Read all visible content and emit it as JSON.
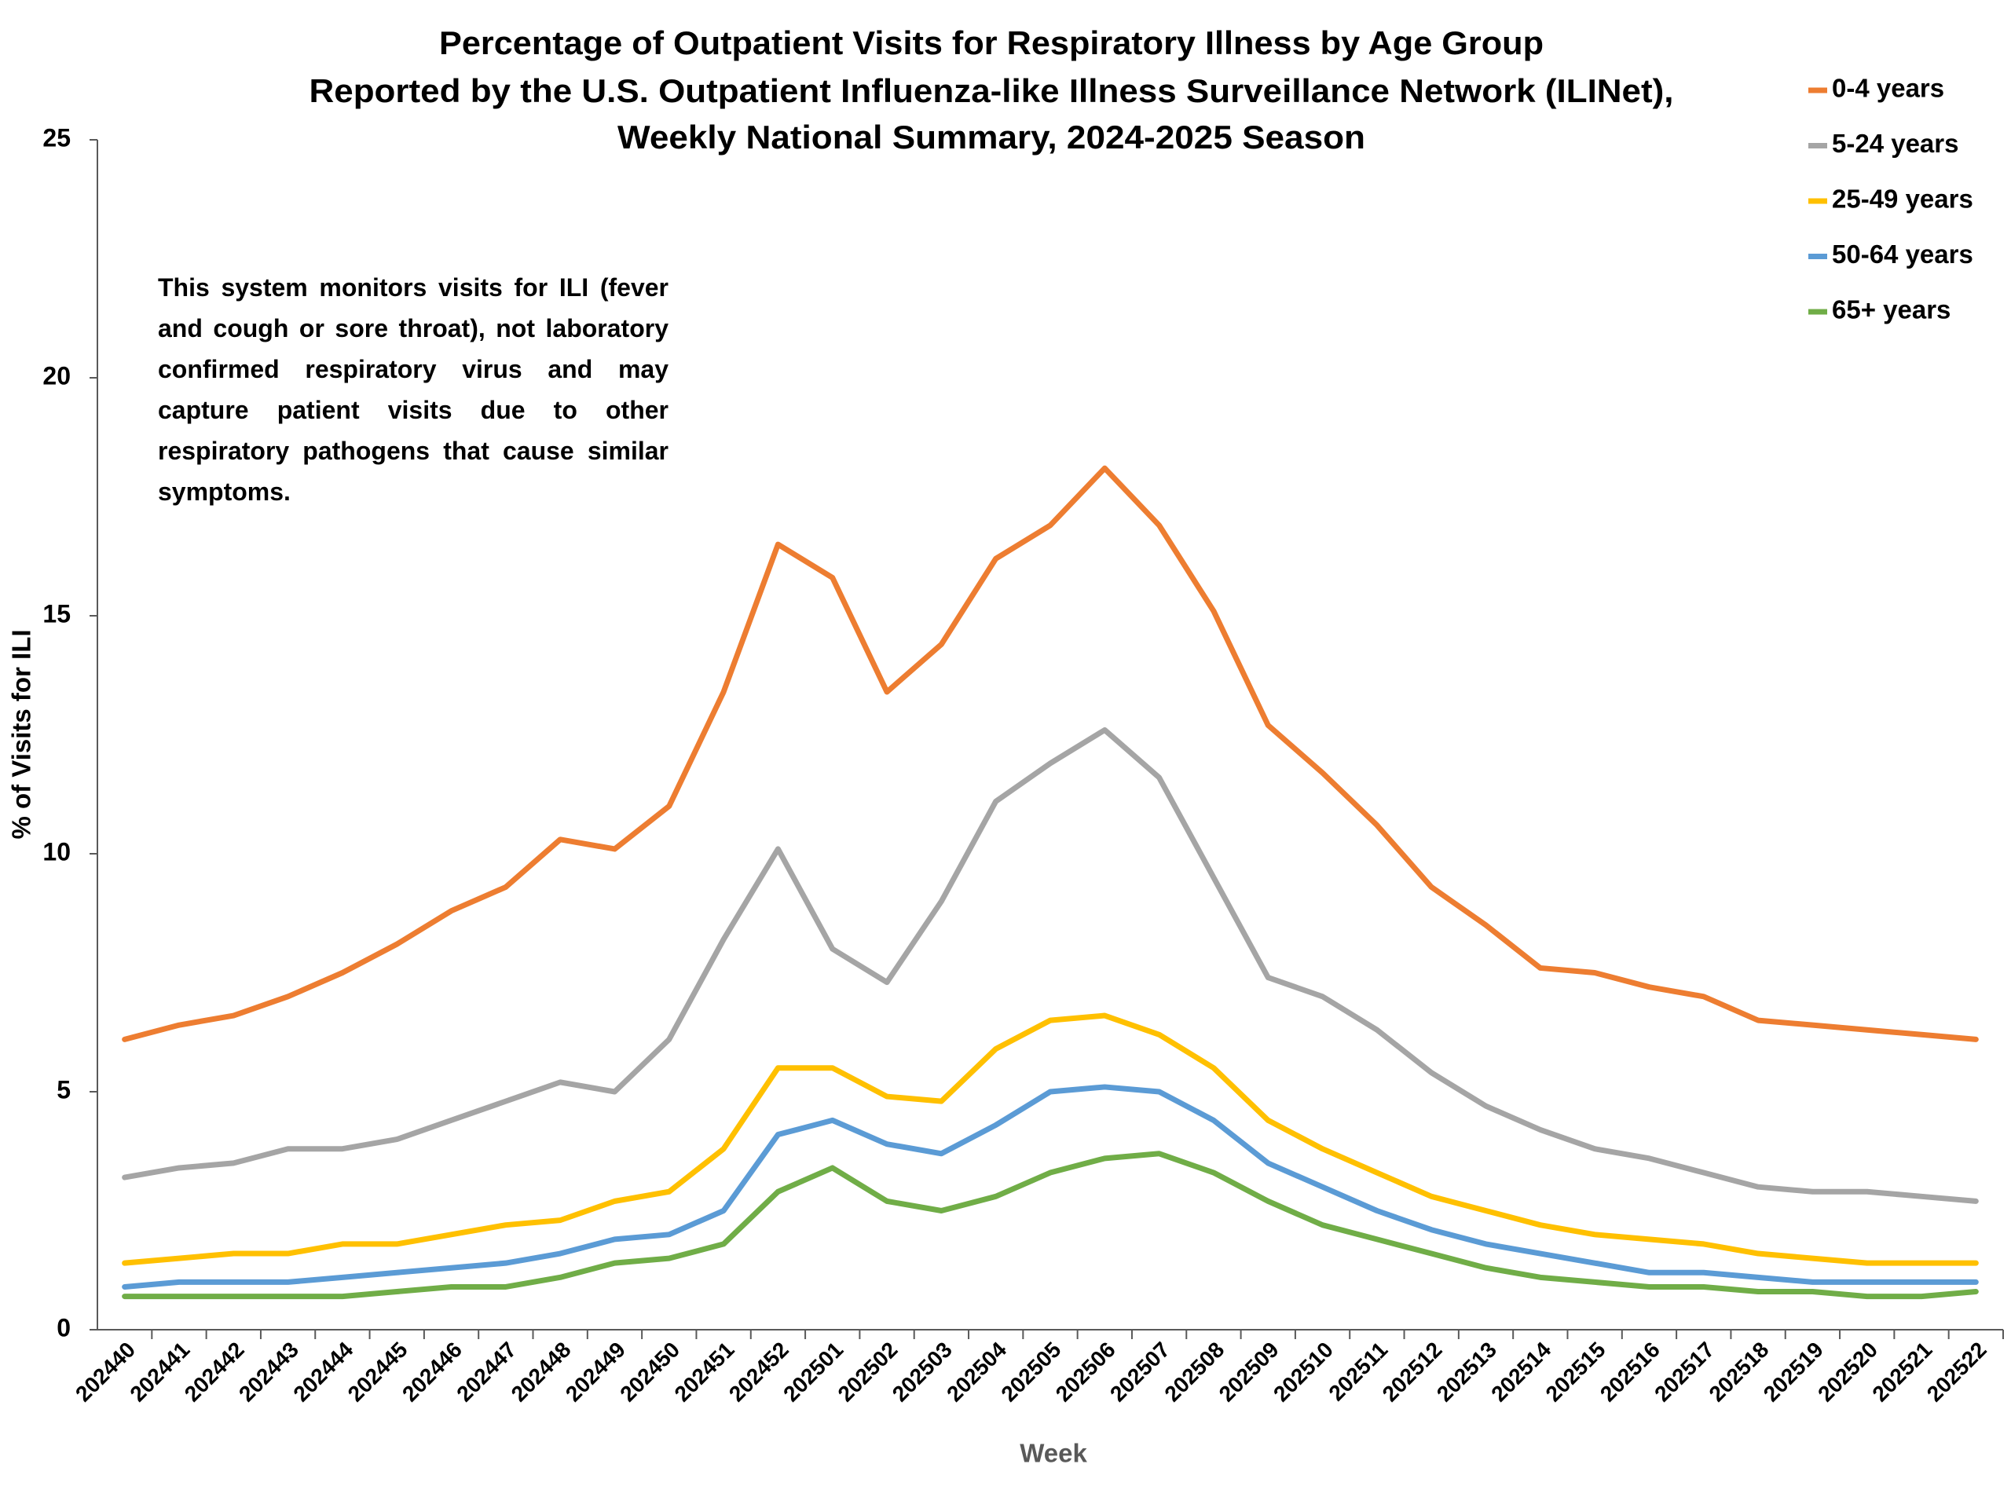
{
  "chart_data": {
    "type": "line",
    "title": [
      "Percentage of Outpatient Visits for Respiratory Illness by Age Group",
      "Reported by the U.S. Outpatient Influenza-like Illness Surveillance Network (ILINet),",
      "Weekly National Summary, 2024-2025 Season"
    ],
    "annotation": "This system monitors visits for ILI (fever and cough or sore throat), not laboratory confirmed respiratory virus and may capture patient visits due to other respiratory pathogens that cause similar symptoms.",
    "xlabel": "Week",
    "ylabel": "% of Visits for ILI",
    "categories": [
      "202440",
      "202441",
      "202442",
      "202443",
      "202444",
      "202445",
      "202446",
      "202447",
      "202448",
      "202449",
      "202450",
      "202451",
      "202452",
      "202501",
      "202502",
      "202503",
      "202504",
      "202505",
      "202506",
      "202507",
      "202508",
      "202509",
      "202510",
      "202511",
      "202512",
      "202513",
      "202514",
      "202515",
      "202516",
      "202517",
      "202518",
      "202519",
      "202520",
      "202521",
      "202522"
    ],
    "ylim": [
      0,
      25
    ],
    "yticks": [
      0,
      5,
      10,
      15,
      20,
      25
    ],
    "grid": false,
    "legend": "top-right",
    "series": [
      {
        "name": "0-4 years",
        "color": "#ED7D31",
        "values": [
          6.1,
          6.4,
          6.6,
          7.0,
          7.5,
          8.1,
          8.8,
          9.3,
          10.3,
          10.1,
          11.0,
          13.4,
          16.5,
          15.8,
          13.4,
          14.4,
          16.2,
          16.9,
          18.1,
          16.9,
          15.1,
          12.7,
          11.7,
          10.6,
          9.3,
          8.5,
          7.6,
          7.5,
          7.2,
          7.0,
          6.5,
          6.4,
          6.3,
          6.2,
          6.1
        ]
      },
      {
        "name": "5-24 years",
        "color": "#A5A5A5",
        "values": [
          3.2,
          3.4,
          3.5,
          3.8,
          3.8,
          4.0,
          4.4,
          4.8,
          5.2,
          5.0,
          6.1,
          8.2,
          10.1,
          8.0,
          7.3,
          9.0,
          11.1,
          11.9,
          12.6,
          11.6,
          9.5,
          7.4,
          7.0,
          6.3,
          5.4,
          4.7,
          4.2,
          3.8,
          3.6,
          3.3,
          3.0,
          2.9,
          2.9,
          2.8,
          2.7
        ]
      },
      {
        "name": "25-49 years",
        "color": "#FFC000",
        "values": [
          1.4,
          1.5,
          1.6,
          1.6,
          1.8,
          1.8,
          2.0,
          2.2,
          2.3,
          2.7,
          2.9,
          3.8,
          5.5,
          5.5,
          4.9,
          4.8,
          5.9,
          6.5,
          6.6,
          6.2,
          5.5,
          4.4,
          3.8,
          3.3,
          2.8,
          2.5,
          2.2,
          2.0,
          1.9,
          1.8,
          1.6,
          1.5,
          1.4,
          1.4,
          1.4
        ]
      },
      {
        "name": "50-64 years",
        "color": "#5B9BD5",
        "values": [
          0.9,
          1.0,
          1.0,
          1.0,
          1.1,
          1.2,
          1.3,
          1.4,
          1.6,
          1.9,
          2.0,
          2.5,
          4.1,
          4.4,
          3.9,
          3.7,
          4.3,
          5.0,
          5.1,
          5.0,
          4.4,
          3.5,
          3.0,
          2.5,
          2.1,
          1.8,
          1.6,
          1.4,
          1.2,
          1.2,
          1.1,
          1.0,
          1.0,
          1.0,
          1.0
        ]
      },
      {
        "name": "65+ years",
        "color": "#70AD47",
        "values": [
          0.7,
          0.7,
          0.7,
          0.7,
          0.7,
          0.8,
          0.9,
          0.9,
          1.1,
          1.4,
          1.5,
          1.8,
          2.9,
          3.4,
          2.7,
          2.5,
          2.8,
          3.3,
          3.6,
          3.7,
          3.3,
          2.7,
          2.2,
          1.9,
          1.6,
          1.3,
          1.1,
          1.0,
          0.9,
          0.9,
          0.8,
          0.8,
          0.7,
          0.7,
          0.8
        ]
      }
    ]
  }
}
